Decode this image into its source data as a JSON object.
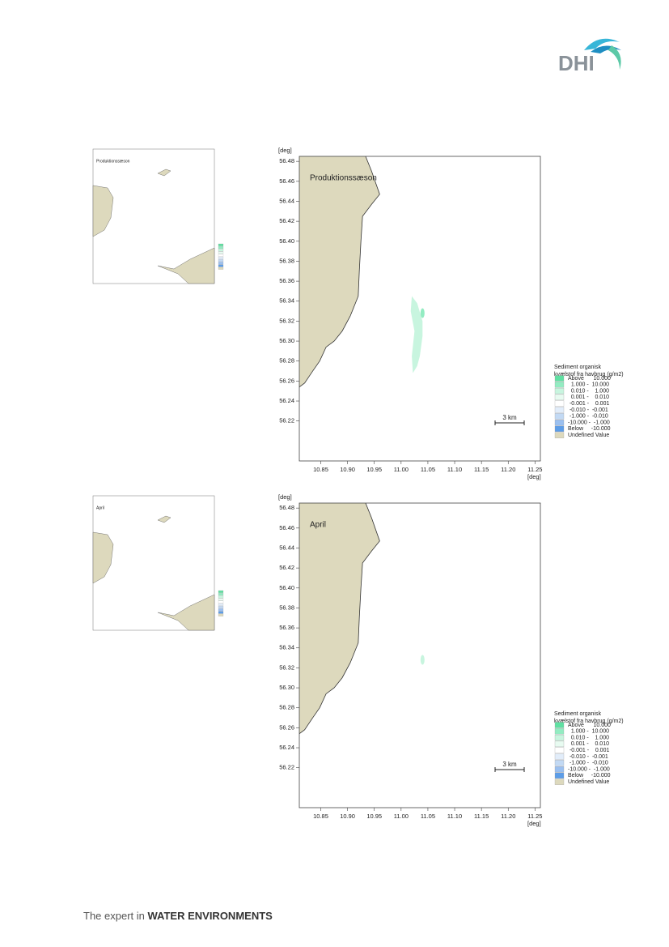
{
  "header": {
    "logo": "DHI"
  },
  "figures": [
    {
      "panel_label": "Produktionssæson",
      "y_axis_label": "[deg]",
      "x_axis_label": "[deg]",
      "xlim": [
        10.81,
        11.26
      ],
      "ylim": [
        56.18,
        56.485
      ],
      "xticks": [
        10.85,
        {
          "value": 10.9,
          "label": "10.90"
        },
        10.95,
        {
          "value": 11,
          "label": "11.00"
        },
        11.05,
        {
          "value": 11.1,
          "label": "11.10"
        },
        11.15,
        {
          "value": 11.2,
          "label": "11.20"
        },
        11.25
      ],
      "yticks": [
        56.48,
        56.46,
        56.44,
        56.42,
        {
          "value": 56.4,
          "label": "56.40"
        },
        56.38,
        56.36,
        56.34,
        56.32,
        {
          "value": 56.3,
          "label": "56.30"
        },
        56.28,
        56.26,
        56.24,
        56.22
      ],
      "scale_bar": "3 km",
      "legend": {
        "title_lines": [
          "Sediment organisk",
          "kvælstof fra havbrug (g/m2)"
        ],
        "items": [
          {
            "label": "Above      10.000",
            "color": "#5fe0a2"
          },
          {
            "label": "  1.000 -  10.000",
            "color": "#93ecc2"
          },
          {
            "label": "  0.010 -    1.000",
            "color": "#c8f5df"
          },
          {
            "label": "  0.001 -    0.010",
            "color": "#e8fbf1"
          },
          {
            "label": " -0.001 -    0.001",
            "color": "#ffffff"
          },
          {
            "label": " -0.010 -  -0.001",
            "color": "#e2edfa"
          },
          {
            "label": " -1.000 -  -0.010",
            "color": "#c2d9f4"
          },
          {
            "label": "-10.000 -  -1.000",
            "color": "#9bc0f0"
          },
          {
            "label": "Below     -10.000",
            "color": "#5c9de8"
          },
          {
            "label": "Undefined Value",
            "color": "#ddd9bd"
          }
        ]
      }
    },
    {
      "panel_label": "April",
      "y_axis_label": "[deg]",
      "x_axis_label": "[deg]",
      "xlim": [
        10.81,
        11.26
      ],
      "ylim": [
        56.18,
        56.485
      ],
      "xticks": [
        10.85,
        {
          "value": 10.9,
          "label": "10.90"
        },
        10.95,
        {
          "value": 11,
          "label": "11.00"
        },
        11.05,
        {
          "value": 11.1,
          "label": "11.10"
        },
        11.15,
        {
          "value": 11.2,
          "label": "11.20"
        },
        11.25
      ],
      "yticks": [
        56.48,
        56.46,
        56.44,
        56.42,
        {
          "value": 56.4,
          "label": "56.40"
        },
        56.38,
        56.36,
        56.34,
        56.32,
        {
          "value": 56.3,
          "label": "56.30"
        },
        56.28,
        56.26,
        56.24,
        56.22
      ],
      "scale_bar": "3 km",
      "legend": {
        "title_lines": [
          "Sediment organisk",
          "kvælstof fra havbrug (g/m2)"
        ],
        "items": [
          {
            "label": "Above      10.000",
            "color": "#5fe0a2"
          },
          {
            "label": "  1.000 -  10.000",
            "color": "#93ecc2"
          },
          {
            "label": "  0.010 -    1.000",
            "color": "#c8f5df"
          },
          {
            "label": "  0.001 -    0.010",
            "color": "#e8fbf1"
          },
          {
            "label": " -0.001 -    0.001",
            "color": "#ffffff"
          },
          {
            "label": " -0.010 -  -0.001",
            "color": "#e2edfa"
          },
          {
            "label": " -1.000 -  -0.010",
            "color": "#c2d9f4"
          },
          {
            "label": "-10.000 -  -1.000",
            "color": "#9bc0f0"
          },
          {
            "label": "Below     -10.000",
            "color": "#5c9de8"
          },
          {
            "label": "Undefined Value",
            "color": "#ddd9bd"
          }
        ]
      }
    }
  ],
  "footer": {
    "prefix": "The expert in",
    "emphasis": "WATER ENVIRONMENTS"
  }
}
